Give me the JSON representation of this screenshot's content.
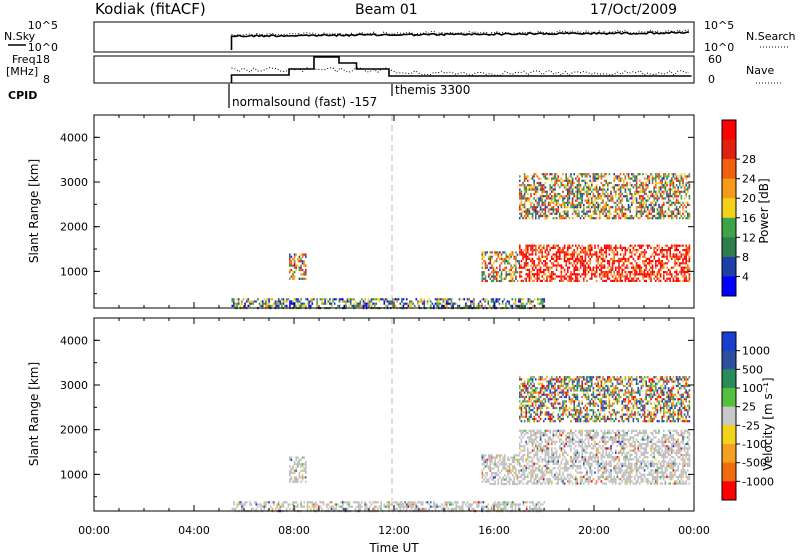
{
  "header": {
    "site": "Kodiak (fitACF)",
    "beam": "Beam 01",
    "date": "17/Oct/2009"
  },
  "left_labels": {
    "nsky": "N.Sky",
    "freq_line1": "Freq.",
    "freq_line2": "[MHz]",
    "cpid": "CPID"
  },
  "right_labels": {
    "nsearch": "N.Search",
    "nave": "Nave"
  },
  "noise_panel": {
    "left_ticks": [
      "10^5",
      "10^0"
    ],
    "right_ticks": [
      "10^5",
      "10^0"
    ]
  },
  "freq_panel": {
    "left_ticks": [
      "18",
      "8"
    ],
    "right_ticks": [
      "60",
      "0"
    ]
  },
  "cpid_segments": [
    {
      "label": "normalsound (fast) -157"
    },
    {
      "label": "themis 3300"
    }
  ],
  "colors": {
    "power_scale": [
      "#0000ff",
      "#1f3fa8",
      "#2e7d4f",
      "#3fa34a",
      "#f5d21a",
      "#f59a1a",
      "#f06010",
      "#e02010",
      "#ff0000"
    ],
    "velocity_scale": [
      "#1a3fd0",
      "#2e4fa0",
      "#2a8a5a",
      "#55c040",
      "#c8c8c8",
      "#f5d21a",
      "#f5a020",
      "#f06a10",
      "#ff0000"
    ],
    "ground_scatter": "#bebebe"
  },
  "chart_data": [
    {
      "type": "heatmap",
      "quantity": "Power",
      "ylabel": "Slant Range [km]",
      "ylim": [
        180,
        4500
      ],
      "yticks": [
        "1000",
        "2000",
        "3000",
        "4000"
      ],
      "xlim": [
        0,
        24
      ],
      "colorbar_label": "Power [dB]",
      "colorbar_ticks": [
        "4",
        "8",
        "12",
        "16",
        "20",
        "24",
        "28"
      ],
      "scatter_regions": [
        {
          "t": [
            5.5,
            18.0
          ],
          "range": [
            200,
            400
          ],
          "level": "low-mid"
        },
        {
          "t": [
            7.8,
            8.5
          ],
          "range": [
            850,
            1400
          ],
          "level": "mixed"
        },
        {
          "t": [
            15.5,
            17.0
          ],
          "range": [
            800,
            1450
          ],
          "level": "mixed"
        },
        {
          "t": [
            17.0,
            23.8
          ],
          "range": [
            800,
            1600
          ],
          "level": "high"
        },
        {
          "t": [
            17.0,
            23.8
          ],
          "range": [
            2200,
            3200
          ],
          "level": "mixed"
        }
      ]
    },
    {
      "type": "heatmap",
      "quantity": "Velocity",
      "ylabel": "Slant Range [km]",
      "ylim": [
        180,
        4500
      ],
      "yticks": [
        "1000",
        "2000",
        "3000",
        "4000"
      ],
      "xlim": [
        0,
        24
      ],
      "xticks": [
        "00:00",
        "04:00",
        "08:00",
        "12:00",
        "16:00",
        "20:00",
        "00:00"
      ],
      "xlabel": "Time UT",
      "colorbar_label": "Velocity [m s⁻¹]",
      "colorbar_ticks": [
        "1000",
        "500",
        "100",
        "25",
        "-25",
        "-100",
        "-500",
        "-1000"
      ],
      "scatter_regions": [
        {
          "t": [
            5.5,
            18.0
          ],
          "range": [
            200,
            400
          ],
          "level": "ground"
        },
        {
          "t": [
            7.8,
            8.5
          ],
          "range": [
            850,
            1400
          ],
          "level": "ground"
        },
        {
          "t": [
            15.5,
            17.0
          ],
          "range": [
            800,
            1450
          ],
          "level": "ground"
        },
        {
          "t": [
            17.0,
            23.8
          ],
          "range": [
            800,
            2000
          ],
          "level": "ground"
        },
        {
          "t": [
            17.0,
            23.8
          ],
          "range": [
            2200,
            3200
          ],
          "level": "mixed"
        }
      ]
    }
  ]
}
